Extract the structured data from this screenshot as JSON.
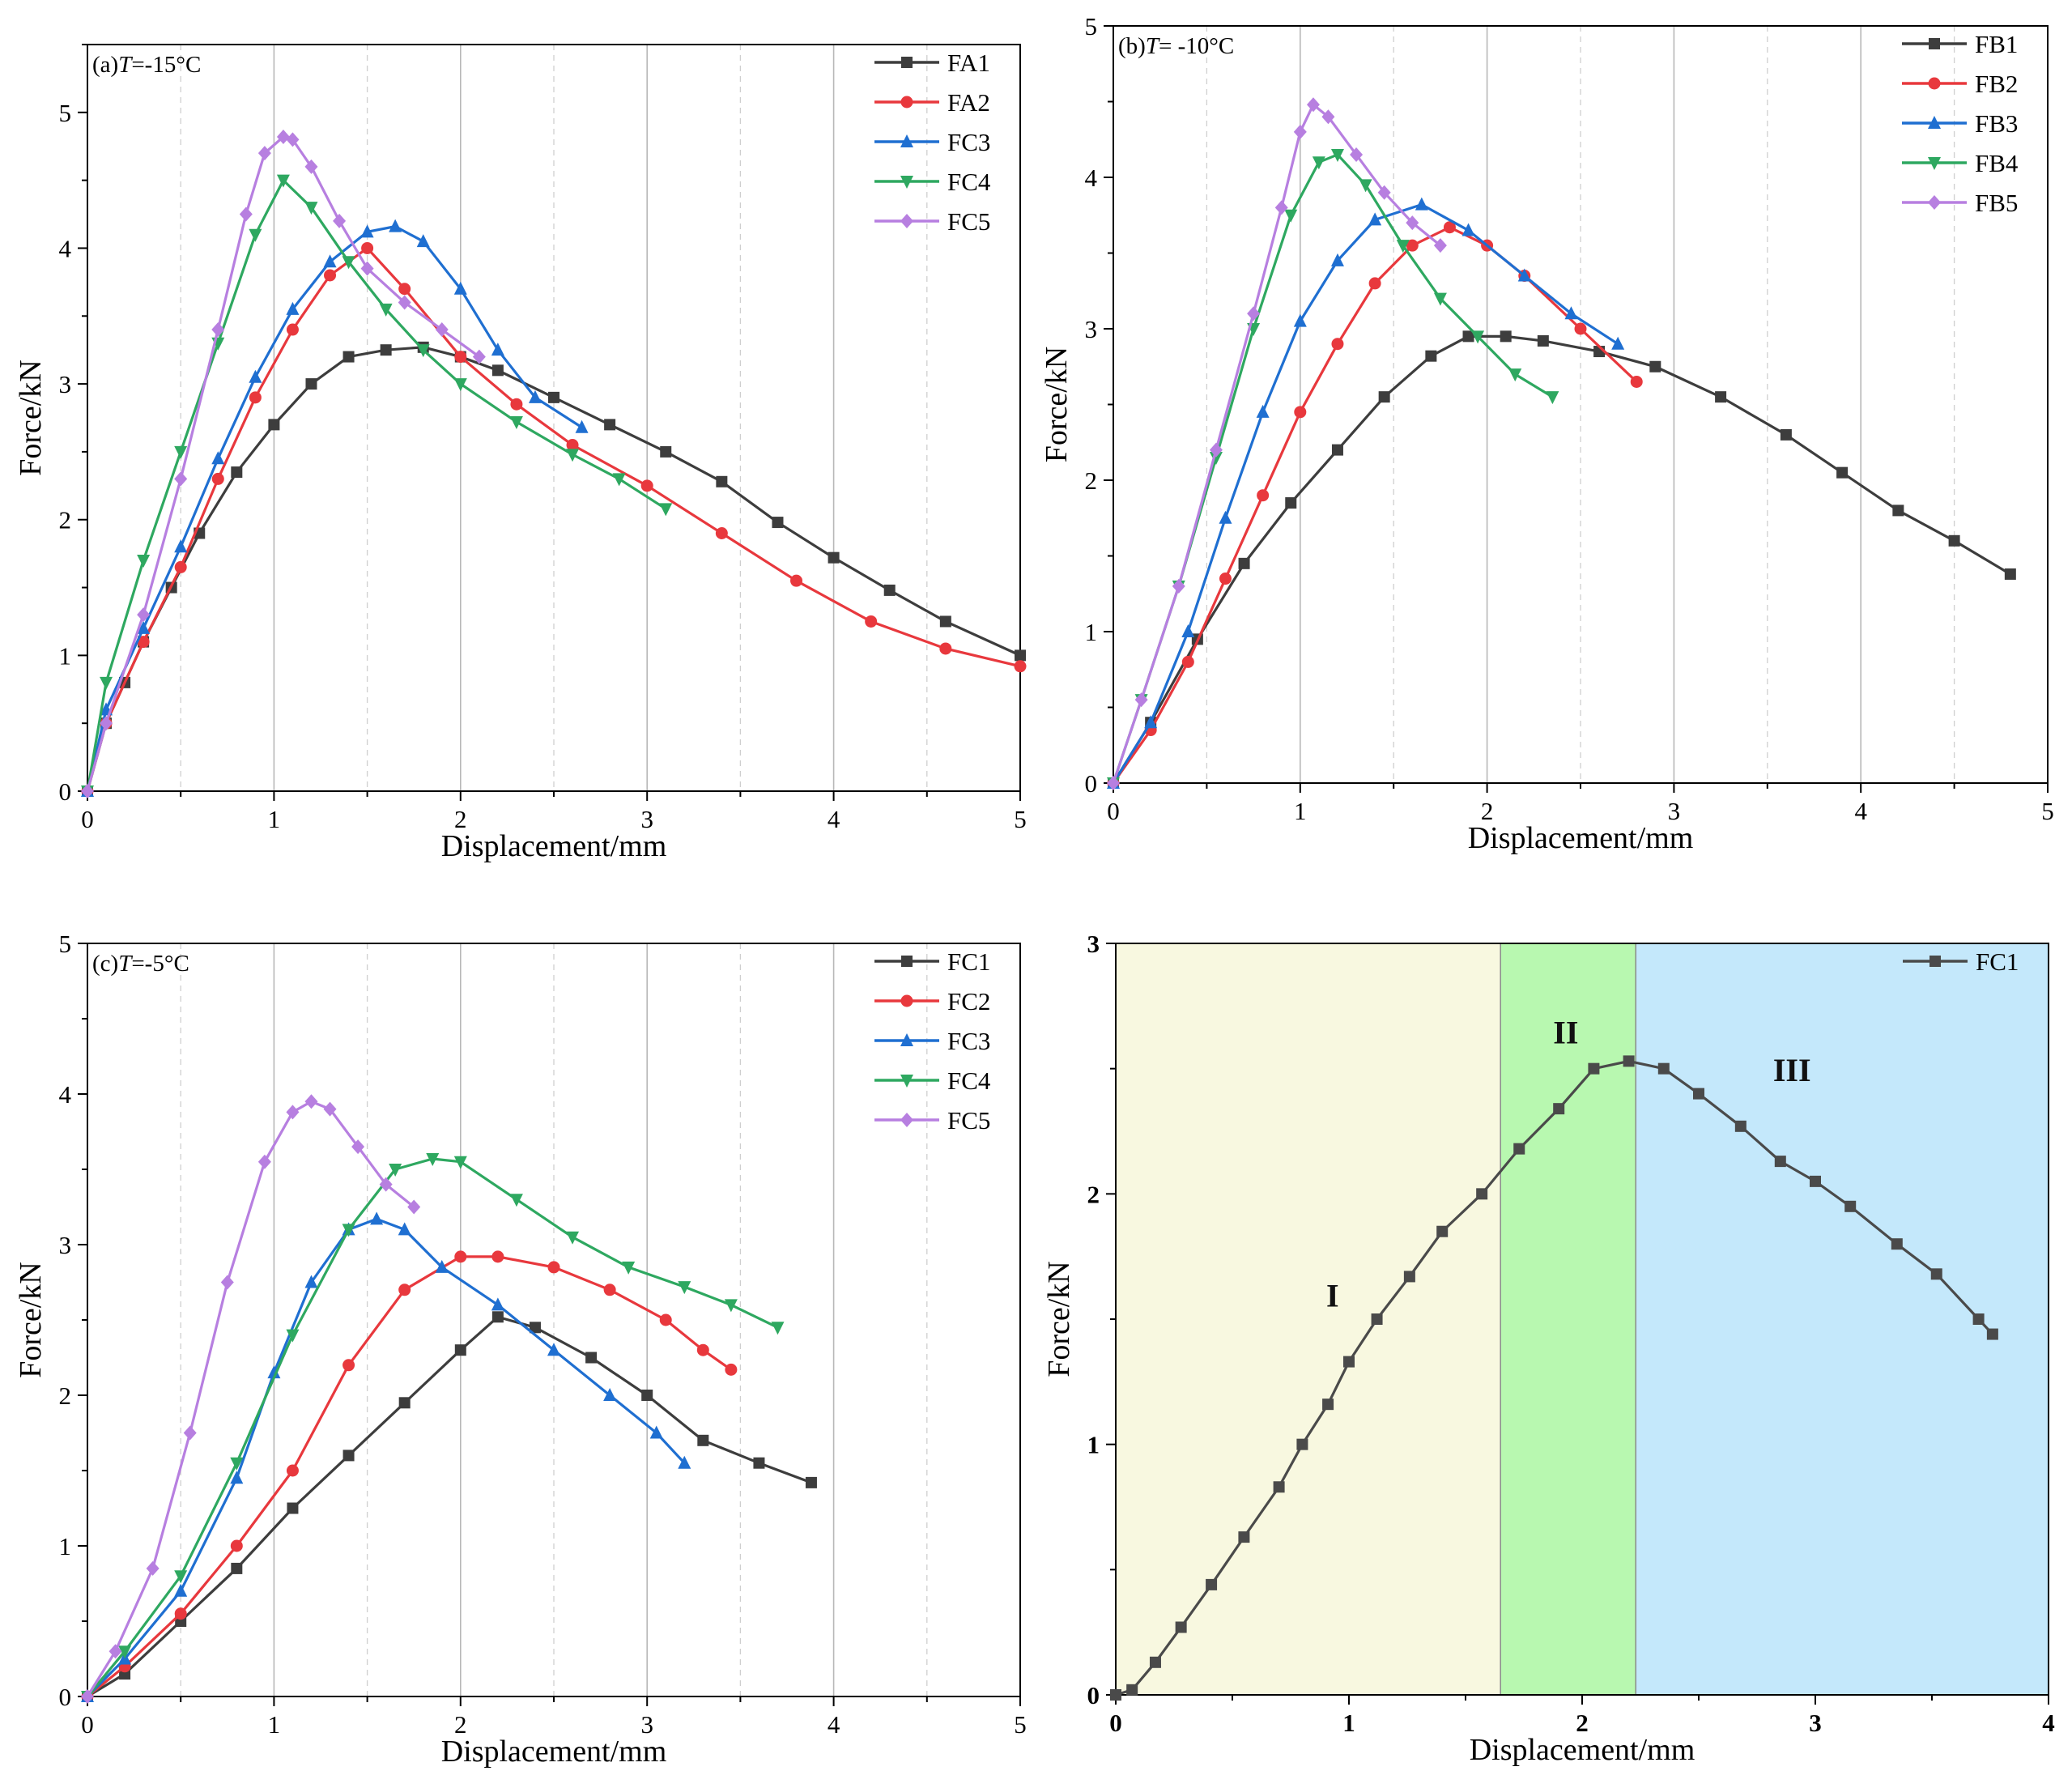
{
  "chart_data": [
    {
      "type": "line",
      "panel_label": "(a)",
      "label_var": "T",
      "label_val": "=-15°C",
      "xlabel": "Displacement/mm",
      "ylabel": "Force/kN",
      "xlim": [
        0,
        5
      ],
      "ylim": [
        0,
        5.5
      ],
      "xticks": [
        "0",
        "1",
        "2",
        "3",
        "4",
        "5"
      ],
      "yticks": [
        "0",
        "1",
        "2",
        "3",
        "4",
        "5"
      ],
      "grid": true,
      "legend": "top-right",
      "series": [
        {
          "name": "FA1",
          "color": "#3d3d3d",
          "marker": "square",
          "x": [
            0,
            0.1,
            0.2,
            0.3,
            0.45,
            0.6,
            0.8,
            1.0,
            1.2,
            1.4,
            1.6,
            1.8,
            2.0,
            2.2,
            2.5,
            2.8,
            3.1,
            3.4,
            3.7,
            4.0,
            4.3,
            4.6,
            5.0
          ],
          "y": [
            0,
            0.5,
            0.8,
            1.1,
            1.5,
            1.9,
            2.35,
            2.7,
            3.0,
            3.2,
            3.25,
            3.27,
            3.2,
            3.1,
            2.9,
            2.7,
            2.5,
            2.28,
            1.98,
            1.72,
            1.48,
            1.25,
            1.0
          ]
        },
        {
          "name": "FA2",
          "color": "#e8383d",
          "marker": "circle",
          "x": [
            0,
            0.1,
            0.3,
            0.5,
            0.7,
            0.9,
            1.1,
            1.3,
            1.5,
            1.7,
            2.0,
            2.3,
            2.6,
            3.0,
            3.4,
            3.8,
            4.2,
            4.6,
            5.0
          ],
          "y": [
            0,
            0.5,
            1.1,
            1.65,
            2.3,
            2.9,
            3.4,
            3.8,
            4.0,
            3.7,
            3.2,
            2.85,
            2.55,
            2.25,
            1.9,
            1.55,
            1.25,
            1.05,
            0.92
          ]
        },
        {
          "name": "FC3",
          "color": "#1f6fd1",
          "marker": "triangle-up",
          "x": [
            0,
            0.1,
            0.3,
            0.5,
            0.7,
            0.9,
            1.1,
            1.3,
            1.5,
            1.65,
            1.8,
            2.0,
            2.2,
            2.4,
            2.65
          ],
          "y": [
            0,
            0.6,
            1.2,
            1.8,
            2.45,
            3.05,
            3.55,
            3.9,
            4.12,
            4.16,
            4.05,
            3.7,
            3.25,
            2.9,
            2.68
          ]
        },
        {
          "name": "FC4",
          "color": "#2ea860",
          "marker": "triangle-down",
          "x": [
            0,
            0.1,
            0.3,
            0.5,
            0.7,
            0.9,
            1.05,
            1.2,
            1.4,
            1.6,
            1.8,
            2.0,
            2.3,
            2.6,
            2.85,
            3.1
          ],
          "y": [
            0,
            0.8,
            1.7,
            2.5,
            3.3,
            4.1,
            4.5,
            4.3,
            3.9,
            3.55,
            3.25,
            3.0,
            2.72,
            2.48,
            2.3,
            2.08
          ]
        },
        {
          "name": "FC5",
          "color": "#b77fe0",
          "marker": "diamond",
          "x": [
            0,
            0.1,
            0.3,
            0.5,
            0.7,
            0.85,
            0.95,
            1.05,
            1.1,
            1.2,
            1.35,
            1.5,
            1.7,
            1.9,
            2.1
          ],
          "y": [
            0,
            0.5,
            1.3,
            2.3,
            3.4,
            4.25,
            4.7,
            4.82,
            4.8,
            4.6,
            4.2,
            3.85,
            3.6,
            3.4,
            3.2
          ]
        }
      ]
    },
    {
      "type": "line",
      "panel_label": "(b)",
      "label_var": "T",
      "label_val": "= -10°C",
      "xlabel": "Displacement/mm",
      "ylabel": "Force/kN",
      "xlim": [
        0,
        5
      ],
      "ylim": [
        0,
        5
      ],
      "xticks": [
        "0",
        "1",
        "2",
        "3",
        "4",
        "5"
      ],
      "yticks": [
        "0",
        "1",
        "2",
        "3",
        "4",
        "5"
      ],
      "grid": true,
      "legend": "top-right",
      "series": [
        {
          "name": "FB1",
          "color": "#3d3d3d",
          "marker": "square",
          "x": [
            0,
            0.2,
            0.45,
            0.7,
            0.95,
            1.2,
            1.45,
            1.7,
            1.9,
            2.1,
            2.3,
            2.6,
            2.9,
            3.25,
            3.6,
            3.9,
            4.2,
            4.5,
            4.8
          ],
          "y": [
            0,
            0.4,
            0.95,
            1.45,
            1.85,
            2.2,
            2.55,
            2.82,
            2.95,
            2.95,
            2.92,
            2.85,
            2.75,
            2.55,
            2.3,
            2.05,
            1.8,
            1.6,
            1.38
          ]
        },
        {
          "name": "FB2",
          "color": "#e8383d",
          "marker": "circle",
          "x": [
            0,
            0.2,
            0.4,
            0.6,
            0.8,
            1.0,
            1.2,
            1.4,
            1.6,
            1.8,
            2.0,
            2.2,
            2.5,
            2.8
          ],
          "y": [
            0,
            0.35,
            0.8,
            1.35,
            1.9,
            2.45,
            2.9,
            3.3,
            3.55,
            3.67,
            3.55,
            3.35,
            3.0,
            2.65
          ]
        },
        {
          "name": "FB3",
          "color": "#1f6fd1",
          "marker": "triangle-up",
          "x": [
            0,
            0.2,
            0.4,
            0.6,
            0.8,
            1.0,
            1.2,
            1.4,
            1.65,
            1.9,
            2.2,
            2.45,
            2.7
          ],
          "y": [
            0,
            0.4,
            1.0,
            1.75,
            2.45,
            3.05,
            3.45,
            3.72,
            3.82,
            3.65,
            3.35,
            3.1,
            2.9
          ]
        },
        {
          "name": "FB4",
          "color": "#2ea860",
          "marker": "triangle-down",
          "x": [
            0,
            0.15,
            0.35,
            0.55,
            0.75,
            0.95,
            1.1,
            1.2,
            1.35,
            1.55,
            1.75,
            1.95,
            2.15,
            2.35
          ],
          "y": [
            0,
            0.55,
            1.3,
            2.15,
            3.0,
            3.75,
            4.1,
            4.15,
            3.95,
            3.55,
            3.2,
            2.95,
            2.7,
            2.55
          ]
        },
        {
          "name": "FB5",
          "color": "#b77fe0",
          "marker": "diamond",
          "x": [
            0,
            0.15,
            0.35,
            0.55,
            0.75,
            0.9,
            1.0,
            1.07,
            1.15,
            1.3,
            1.45,
            1.6,
            1.75
          ],
          "y": [
            0,
            0.55,
            1.3,
            2.2,
            3.1,
            3.8,
            4.3,
            4.48,
            4.4,
            4.15,
            3.9,
            3.7,
            3.55
          ]
        }
      ]
    },
    {
      "type": "line",
      "panel_label": "(c)",
      "label_var": "T",
      "label_val": "=-5°C",
      "xlabel": "Displacement/mm",
      "ylabel": "Force/kN",
      "xlim": [
        0,
        5
      ],
      "ylim": [
        0,
        5
      ],
      "xticks": [
        "0",
        "1",
        "2",
        "3",
        "4",
        "5"
      ],
      "yticks": [
        "0",
        "1",
        "2",
        "3",
        "4",
        "5"
      ],
      "grid": true,
      "legend": "top-right",
      "series": [
        {
          "name": "FC1",
          "color": "#3d3d3d",
          "marker": "square",
          "x": [
            0,
            0.2,
            0.5,
            0.8,
            1.1,
            1.4,
            1.7,
            2.0,
            2.2,
            2.4,
            2.7,
            3.0,
            3.3,
            3.6,
            3.88
          ],
          "y": [
            0,
            0.15,
            0.5,
            0.85,
            1.25,
            1.6,
            1.95,
            2.3,
            2.52,
            2.45,
            2.25,
            2.0,
            1.7,
            1.55,
            1.42
          ]
        },
        {
          "name": "FC2",
          "color": "#e8383d",
          "marker": "circle",
          "x": [
            0,
            0.2,
            0.5,
            0.8,
            1.1,
            1.4,
            1.7,
            2.0,
            2.2,
            2.5,
            2.8,
            3.1,
            3.3,
            3.45
          ],
          "y": [
            0,
            0.2,
            0.55,
            1.0,
            1.5,
            2.2,
            2.7,
            2.92,
            2.92,
            2.85,
            2.7,
            2.5,
            2.3,
            2.17
          ]
        },
        {
          "name": "FC3",
          "color": "#1f6fd1",
          "marker": "triangle-up",
          "x": [
            0,
            0.2,
            0.5,
            0.8,
            1.0,
            1.2,
            1.4,
            1.55,
            1.7,
            1.9,
            2.2,
            2.5,
            2.8,
            3.05,
            3.2
          ],
          "y": [
            0,
            0.25,
            0.7,
            1.45,
            2.15,
            2.75,
            3.1,
            3.17,
            3.1,
            2.85,
            2.6,
            2.3,
            2.0,
            1.75,
            1.55
          ]
        },
        {
          "name": "FC4",
          "color": "#2ea860",
          "marker": "triangle-down",
          "x": [
            0,
            0.2,
            0.5,
            0.8,
            1.1,
            1.4,
            1.65,
            1.85,
            2.0,
            2.3,
            2.6,
            2.9,
            3.2,
            3.45,
            3.7
          ],
          "y": [
            0,
            0.3,
            0.8,
            1.55,
            2.4,
            3.1,
            3.5,
            3.57,
            3.55,
            3.3,
            3.05,
            2.85,
            2.72,
            2.6,
            2.45
          ]
        },
        {
          "name": "FC5",
          "color": "#b77fe0",
          "marker": "diamond",
          "x": [
            0,
            0.15,
            0.35,
            0.55,
            0.75,
            0.95,
            1.1,
            1.2,
            1.3,
            1.45,
            1.6,
            1.75
          ],
          "y": [
            0,
            0.3,
            0.85,
            1.75,
            2.75,
            3.55,
            3.88,
            3.95,
            3.9,
            3.65,
            3.4,
            3.25
          ]
        }
      ]
    },
    {
      "type": "line",
      "xlabel": "Displacement/mm",
      "ylabel": "Force/kN",
      "xlim": [
        0,
        4
      ],
      "ylim": [
        0,
        3
      ],
      "xticks": [
        "0",
        "1",
        "2",
        "3",
        "4"
      ],
      "yticks": [
        "0",
        "1",
        "2",
        "3"
      ],
      "grid": false,
      "legend": "top-right",
      "regions": [
        {
          "label": "I",
          "x_range": [
            0,
            1.65
          ],
          "color": "#f8f8e0"
        },
        {
          "label": "II",
          "x_range": [
            1.65,
            2.23
          ],
          "color": "#b8f8b0"
        },
        {
          "label": "III",
          "x_range": [
            2.23,
            4.0
          ],
          "color": "#c4e8fb"
        }
      ],
      "region_text_pos": [
        {
          "label": "I",
          "x": 0.93,
          "y": 1.55
        },
        {
          "label": "II",
          "x": 1.93,
          "y": 2.6
        },
        {
          "label": "III",
          "x": 2.9,
          "y": 2.45
        }
      ],
      "series": [
        {
          "name": "FC1",
          "color": "#4a4a4a",
          "marker": "square",
          "x": [
            0,
            0.07,
            0.17,
            0.28,
            0.41,
            0.55,
            0.7,
            0.8,
            0.91,
            1.0,
            1.12,
            1.26,
            1.4,
            1.57,
            1.73,
            1.9,
            2.05,
            2.2,
            2.35,
            2.5,
            2.68,
            2.85,
            3.0,
            3.15,
            3.35,
            3.52,
            3.7,
            3.76
          ],
          "y": [
            0,
            0.02,
            0.13,
            0.27,
            0.44,
            0.63,
            0.83,
            1.0,
            1.16,
            1.33,
            1.5,
            1.67,
            1.85,
            2.0,
            2.18,
            2.34,
            2.5,
            2.53,
            2.5,
            2.4,
            2.27,
            2.13,
            2.05,
            1.95,
            1.8,
            1.68,
            1.5,
            1.44
          ]
        }
      ]
    }
  ]
}
